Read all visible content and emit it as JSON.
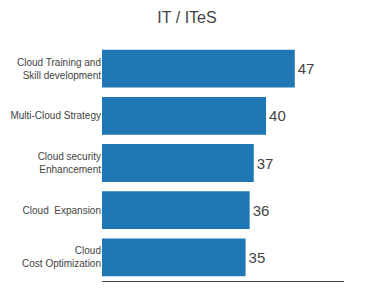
{
  "chart_data": {
    "type": "bar",
    "title": "IT / ITeS",
    "categories": [
      "Cloud Training and\nSkill development",
      "Multi-Cloud Strategy",
      "Cloud security\nEnhancement",
      "Cloud  Expansion",
      "Cloud\nCost Optimization"
    ],
    "values": [
      47,
      40,
      37,
      36,
      35
    ],
    "orientation": "horizontal",
    "xlim": [
      0,
      59
    ],
    "data_labels": true,
    "tick_labels": "y",
    "grid": false
  }
}
